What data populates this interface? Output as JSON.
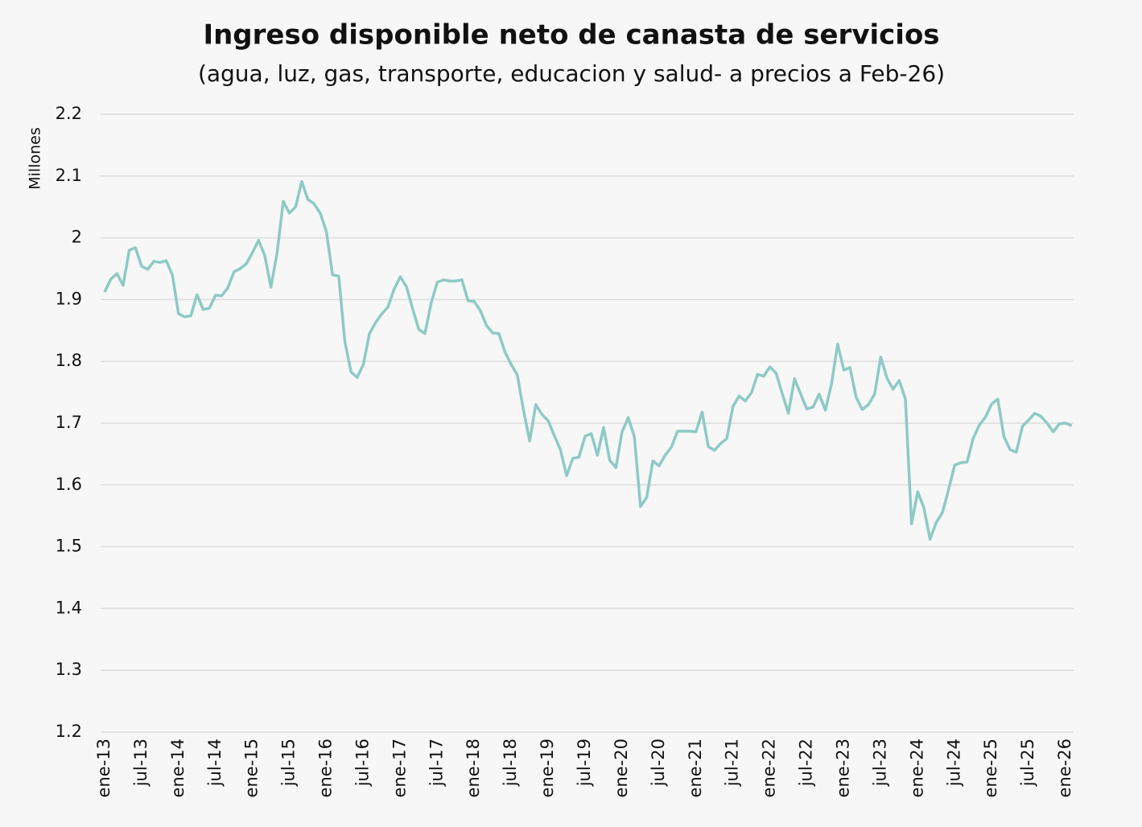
{
  "chart_data": {
    "type": "line",
    "title": "Ingreso disponible neto de canasta de servicios",
    "subtitle": "(agua, luz, gas, transporte, educacion y salud- a precios a Feb-26)",
    "y_label": "Millones",
    "categories": [
      "ene-13",
      null,
      null,
      null,
      null,
      null,
      "jul-13",
      null,
      null,
      null,
      null,
      null,
      "ene-14",
      null,
      null,
      null,
      null,
      null,
      "jul-14",
      null,
      null,
      null,
      null,
      null,
      "ene-15",
      null,
      null,
      null,
      null,
      null,
      "jul-15",
      null,
      null,
      null,
      null,
      null,
      "ene-16",
      null,
      null,
      null,
      null,
      null,
      "jul-16",
      null,
      null,
      null,
      null,
      null,
      "ene-17",
      null,
      null,
      null,
      null,
      null,
      "jul-17",
      null,
      null,
      null,
      null,
      null,
      "ene-18",
      null,
      null,
      null,
      null,
      null,
      "jul-18",
      null,
      null,
      null,
      null,
      null,
      "ene-19",
      null,
      null,
      null,
      null,
      null,
      "jul-19",
      null,
      null,
      null,
      null,
      null,
      "ene-20",
      null,
      null,
      null,
      null,
      null,
      "jul-20",
      null,
      null,
      null,
      null,
      null,
      "ene-21",
      null,
      null,
      null,
      null,
      null,
      "jul-21",
      null,
      null,
      null,
      null,
      null,
      "ene-22",
      null,
      null,
      null,
      null,
      null,
      "jul-22",
      null,
      null,
      null,
      null,
      null,
      "ene-23",
      null,
      null,
      null,
      null,
      null,
      "jul-23",
      null,
      null,
      null,
      null,
      null,
      "ene-24",
      null,
      null,
      null,
      null,
      null,
      "jul-24",
      null,
      null,
      null,
      null,
      null,
      "ene-25",
      null,
      null,
      null,
      null,
      null,
      "jul-25",
      null,
      null,
      null,
      null,
      null,
      "ene-26",
      null
    ],
    "series": [
      {
        "color": "#8ecac4",
        "values": [
          1.912,
          1.933,
          1.942,
          1.923,
          1.98,
          1.984,
          1.954,
          1.949,
          1.962,
          1.96,
          1.963,
          1.94,
          1.877,
          1.872,
          1.874,
          1.908,
          1.884,
          1.886,
          1.907,
          1.906,
          1.919,
          1.945,
          1.95,
          1.958,
          1.976,
          1.996,
          1.971,
          1.92,
          1.976,
          2.059,
          2.04,
          2.05,
          2.091,
          2.062,
          2.055,
          2.04,
          2.01,
          1.94,
          1.938,
          1.832,
          1.783,
          1.774,
          1.795,
          1.845,
          1.863,
          1.877,
          1.888,
          1.917,
          1.937,
          1.921,
          1.885,
          1.852,
          1.845,
          1.894,
          1.928,
          1.932,
          1.93,
          1.93,
          1.932,
          1.898,
          1.897,
          1.882,
          1.858,
          1.846,
          1.845,
          1.815,
          1.795,
          1.778,
          1.721,
          1.671,
          1.73,
          1.714,
          1.704,
          1.68,
          1.657,
          1.615,
          1.643,
          1.645,
          1.679,
          1.683,
          1.648,
          1.693,
          1.64,
          1.628,
          1.686,
          1.709,
          1.678,
          1.565,
          1.58,
          1.639,
          1.631,
          1.648,
          1.661,
          1.687,
          1.687,
          1.687,
          1.686,
          1.718,
          1.662,
          1.656,
          1.667,
          1.675,
          1.727,
          1.744,
          1.736,
          1.749,
          1.779,
          1.776,
          1.791,
          1.781,
          1.748,
          1.716,
          1.772,
          1.747,
          1.723,
          1.726,
          1.747,
          1.721,
          1.763,
          1.828,
          1.786,
          1.79,
          1.742,
          1.722,
          1.73,
          1.747,
          1.807,
          1.773,
          1.755,
          1.769,
          1.739,
          1.537,
          1.589,
          1.563,
          1.512,
          1.539,
          1.555,
          1.592,
          1.632,
          1.636,
          1.637,
          1.675,
          1.697,
          1.71,
          1.731,
          1.739,
          1.678,
          1.657,
          1.653,
          1.695,
          1.705,
          1.716,
          1.711,
          1.7,
          1.686,
          1.699,
          1.7,
          1.696
        ]
      }
    ],
    "ylim": [
      1.2,
      2.2
    ],
    "yticks": [
      1.2,
      1.3,
      1.4,
      1.5,
      1.6,
      1.7,
      1.8,
      1.9,
      2,
      2.1,
      2.2
    ],
    "grid": true
  }
}
